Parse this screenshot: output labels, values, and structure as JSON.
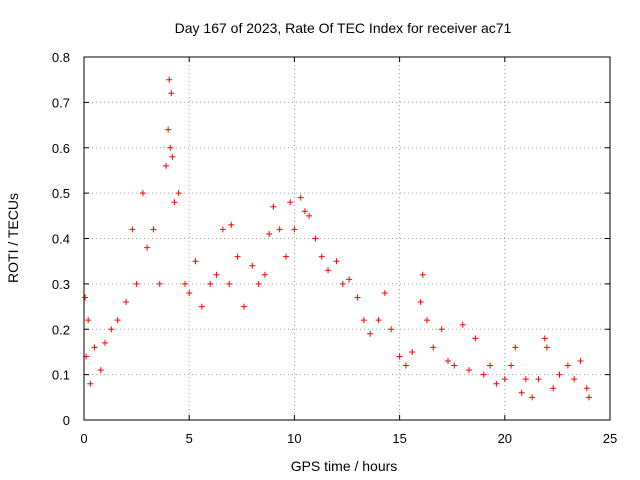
{
  "chart_data": {
    "type": "scatter",
    "title": "Day 167 of 2023, Rate Of TEC Index for receiver ac71",
    "xlabel": "GPS time / hours",
    "ylabel": "ROTI / TECUs",
    "xlim": [
      0,
      25
    ],
    "ylim": [
      0,
      0.8
    ],
    "x_ticks": [
      "0",
      "5",
      "10",
      "15",
      "20",
      "25"
    ],
    "y_ticks": [
      "0",
      "0.1",
      "0.2",
      "0.3",
      "0.4",
      "0.5",
      "0.6",
      "0.7",
      "0.8"
    ],
    "grid": true,
    "marker": "+",
    "color": "#ff0000",
    "series": [
      {
        "x": [
          0.05,
          0.1,
          0.2,
          0.3,
          0.5,
          0.8,
          1.0,
          1.3,
          1.6,
          2.0,
          2.3,
          2.5,
          2.8,
          3.0,
          3.3,
          3.6,
          3.9,
          4.0,
          4.05,
          4.1,
          4.15,
          4.2,
          4.3,
          4.5,
          4.8,
          5.0,
          5.3,
          5.6,
          6.0,
          6.3,
          6.6,
          6.9,
          7.0,
          7.3,
          7.6,
          8.0,
          8.3,
          8.6,
          8.8,
          9.0,
          9.3,
          9.6,
          9.8,
          10.0,
          10.3,
          10.5,
          10.7,
          11.0,
          11.3,
          11.6,
          12.0,
          12.3,
          12.6,
          13.0,
          13.3,
          13.6,
          14.0,
          14.3,
          14.6,
          15.0,
          15.3,
          15.6,
          16.0,
          16.1,
          16.3,
          16.6,
          17.0,
          17.3,
          17.6,
          18.0,
          18.3,
          18.6,
          19.0,
          19.3,
          19.6,
          20.0,
          20.3,
          20.5,
          20.8,
          21.0,
          21.3,
          21.6,
          21.9,
          22.0,
          22.3,
          22.6,
          23.0,
          23.3,
          23.6,
          23.9,
          24.0
        ],
        "y": [
          0.27,
          0.14,
          0.22,
          0.08,
          0.16,
          0.11,
          0.17,
          0.2,
          0.22,
          0.26,
          0.42,
          0.3,
          0.5,
          0.38,
          0.42,
          0.3,
          0.56,
          0.64,
          0.75,
          0.6,
          0.72,
          0.58,
          0.48,
          0.5,
          0.3,
          0.28,
          0.35,
          0.25,
          0.3,
          0.32,
          0.42,
          0.3,
          0.43,
          0.36,
          0.25,
          0.34,
          0.3,
          0.32,
          0.41,
          0.47,
          0.42,
          0.36,
          0.48,
          0.42,
          0.49,
          0.46,
          0.45,
          0.4,
          0.36,
          0.33,
          0.35,
          0.3,
          0.31,
          0.27,
          0.22,
          0.19,
          0.22,
          0.28,
          0.2,
          0.14,
          0.12,
          0.15,
          0.26,
          0.32,
          0.22,
          0.16,
          0.2,
          0.13,
          0.12,
          0.21,
          0.11,
          0.18,
          0.1,
          0.12,
          0.08,
          0.09,
          0.12,
          0.16,
          0.06,
          0.09,
          0.05,
          0.09,
          0.18,
          0.16,
          0.07,
          0.1,
          0.12,
          0.09,
          0.13,
          0.07,
          0.05
        ]
      }
    ]
  }
}
